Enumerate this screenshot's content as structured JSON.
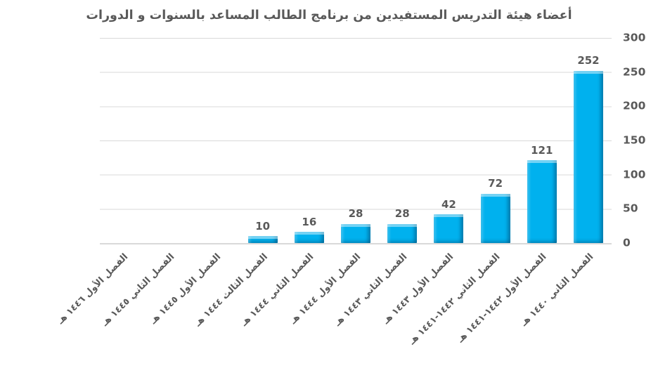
{
  "colors": {
    "background": "#ffffff",
    "bar_fill": "#00b1ee",
    "bar_bevel_light": "#55d6f7",
    "bar_bevel_dark": "#0079ad",
    "text": "#595959",
    "gridline": "#d9d9d9"
  },
  "chart_data": {
    "type": "bar",
    "title": "أعضاء هيئة التدريس المستفيدين من برنامج الطالب المساعد بالسنوات و الدورات",
    "direction": "rtl",
    "legend": "none",
    "categories": [
      "الفصل الأول ١٤٤٦ هـ",
      "الفصل الثاني ١٤٤٥ هـ",
      "الفصل الأول ١٤٤٥ هـ",
      "الفصل الثالث ١٤٤٤ هـ",
      "الفصل الثاني ١٤٤٤ هـ",
      "الفصل الأول ١٤٤٤ هـ",
      "الفصل الثاني ١٤٤٣ هـ",
      "الفصل الأول ١٤٤٣ هـ",
      "الفصل الثاني ١٤٤٢-١٤٤١ هـ",
      "الفصل الأول ١٤٤٢-١٤٤١ هـ",
      "الفصل الثاني ١٤٤٠ هـ"
    ],
    "values": [
      0,
      0,
      0,
      10,
      16,
      28,
      28,
      42,
      72,
      121,
      252
    ],
    "data_labels": [
      "",
      "",
      "",
      "10",
      "16",
      "28",
      "28",
      "42",
      "72",
      "121",
      "252"
    ],
    "y_axis": {
      "side": "right",
      "min": 0,
      "max": 300,
      "tick_step": 50,
      "ticks": [
        "300",
        "250",
        "200",
        "150",
        "100",
        "50",
        "0"
      ],
      "gridlines": true
    },
    "x_axis": {
      "label_rotation_deg": 45
    }
  }
}
